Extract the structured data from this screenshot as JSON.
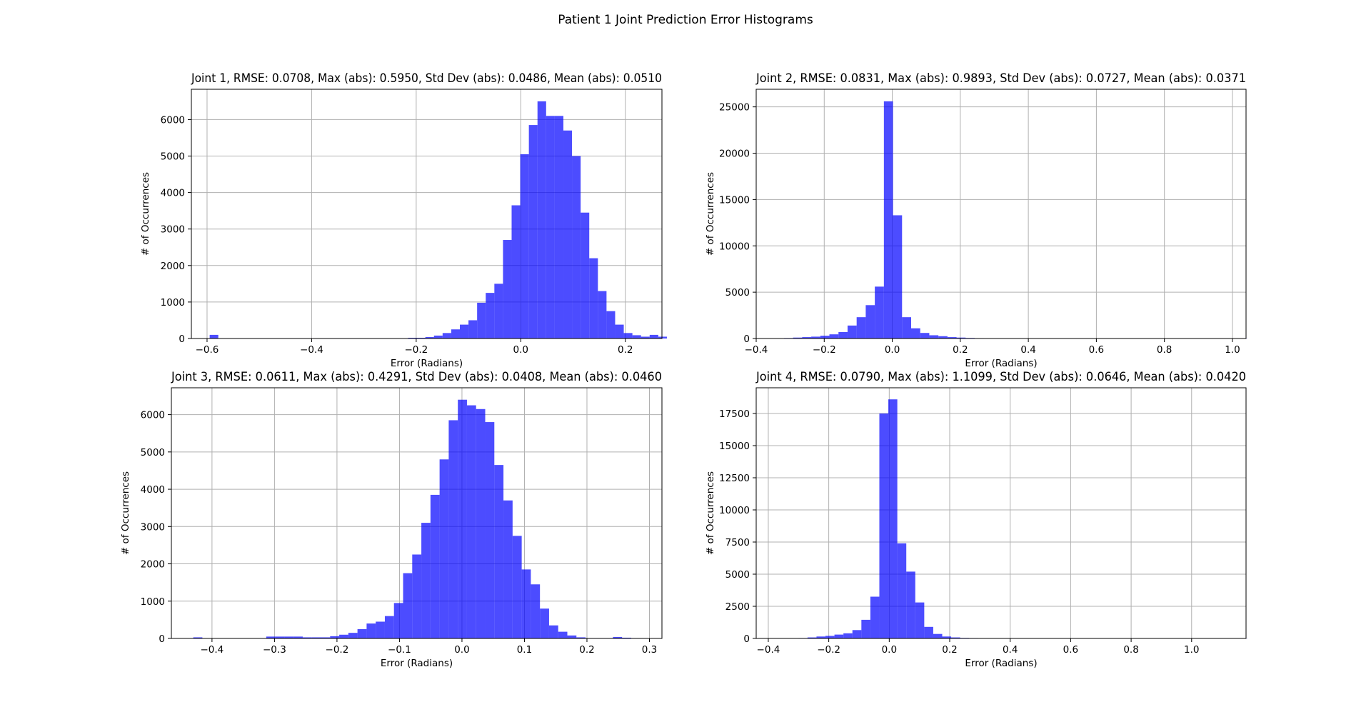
{
  "figure": {
    "title": "Patient 1 Joint Prediction Error Histograms"
  },
  "style": {
    "bar_color": "#0000ff",
    "bar_opacity": 0.7,
    "grid_color": "#b0b0b0"
  },
  "chart_data": [
    {
      "type": "bar",
      "title": "Joint 1, RMSE: 0.0708, Max (abs): 0.5950, Std Dev (abs): 0.0486, Mean (abs): 0.0510",
      "xlabel": "Error (Radians)",
      "ylabel": "# of Occurrences",
      "grid": true,
      "xlim": [
        -0.63,
        0.27
      ],
      "ylim": [
        0,
        6830
      ],
      "xticks": [
        -0.6,
        -0.4,
        -0.2,
        0.0,
        0.2
      ],
      "xtick_labels": [
        "−0.6",
        "−0.4",
        "−0.2",
        "0.0",
        "0.2"
      ],
      "yticks": [
        0,
        1000,
        2000,
        3000,
        4000,
        5000,
        6000
      ],
      "ytick_labels": [
        "0",
        "1000",
        "2000",
        "3000",
        "4000",
        "5000",
        "6000"
      ],
      "bin_start": -0.595,
      "bin_width": 0.0165,
      "values": [
        100,
        10,
        10,
        10,
        10,
        10,
        10,
        10,
        10,
        10,
        10,
        10,
        10,
        10,
        10,
        10,
        10,
        10,
        10,
        10,
        10,
        10,
        10,
        20,
        20,
        40,
        80,
        150,
        250,
        380,
        500,
        980,
        1250,
        1500,
        2700,
        3650,
        5050,
        5850,
        6500,
        6100,
        6100,
        5700,
        5000,
        3450,
        2200,
        1300,
        750,
        380,
        150,
        90,
        50,
        100,
        50
      ]
    },
    {
      "type": "bar",
      "title": "Joint 2, RMSE: 0.0831, Max (abs): 0.9893, Std Dev (abs): 0.0727, Mean (abs): 0.0371",
      "xlabel": "Error (Radians)",
      "ylabel": "# of Occurrences",
      "grid": true,
      "xlim": [
        -0.4,
        1.04
      ],
      "ylim": [
        0,
        26900
      ],
      "xticks": [
        -0.4,
        -0.2,
        0.0,
        0.2,
        0.4,
        0.6,
        0.8,
        1.0
      ],
      "xtick_labels": [
        "−0.4",
        "−0.2",
        "0.0",
        "0.2",
        "0.4",
        "0.6",
        "0.8",
        "1.0"
      ],
      "yticks": [
        0,
        5000,
        10000,
        15000,
        20000,
        25000
      ],
      "ytick_labels": [
        "0",
        "5000",
        "10000",
        "15000",
        "20000",
        "25000"
      ],
      "bin_start": -0.345,
      "bin_width": 0.0267,
      "values": [
        20,
        50,
        100,
        150,
        200,
        300,
        450,
        700,
        1400,
        2300,
        3600,
        5600,
        25600,
        13300,
        2300,
        1100,
        600,
        350,
        250,
        150,
        100,
        60,
        40,
        30,
        30,
        20,
        20,
        20,
        20,
        20,
        20,
        20,
        20,
        20,
        20,
        20,
        20,
        20,
        20,
        20,
        20,
        20,
        20,
        20,
        20,
        20,
        20,
        20,
        20,
        20,
        30,
        30
      ]
    },
    {
      "type": "bar",
      "title": "Joint 3, RMSE: 0.0611, Max (abs): 0.4291, Std Dev (abs): 0.0408, Mean (abs): 0.0460",
      "xlabel": "Error (Radians)",
      "ylabel": "# of Occurrences",
      "grid": true,
      "xlim": [
        -0.465,
        0.32
      ],
      "ylim": [
        0,
        6720
      ],
      "xticks": [
        -0.4,
        -0.3,
        -0.2,
        -0.1,
        0.0,
        0.1,
        0.2,
        0.3
      ],
      "xtick_labels": [
        "−0.4",
        "−0.3",
        "−0.2",
        "−0.1",
        "0.0",
        "0.1",
        "0.2",
        "0.3"
      ],
      "yticks": [
        0,
        1000,
        2000,
        3000,
        4000,
        5000,
        6000
      ],
      "ytick_labels": [
        "0",
        "1000",
        "2000",
        "3000",
        "4000",
        "5000",
        "6000"
      ],
      "bin_start": -0.43,
      "bin_width": 0.0146,
      "values": [
        30,
        0,
        0,
        0,
        0,
        0,
        0,
        0,
        50,
        50,
        50,
        50,
        30,
        30,
        30,
        60,
        100,
        150,
        250,
        400,
        450,
        600,
        950,
        1750,
        2250,
        3100,
        3850,
        4800,
        5850,
        6400,
        6250,
        6150,
        5800,
        4650,
        3700,
        2750,
        1850,
        1450,
        800,
        350,
        180,
        80,
        30,
        10,
        10,
        10,
        40,
        20,
        10,
        0
      ]
    },
    {
      "type": "bar",
      "title": "Joint 4, RMSE: 0.0790, Max (abs): 1.1099, Std Dev (abs): 0.0646, Mean (abs): 0.0420",
      "xlabel": "Error (Radians)",
      "ylabel": "# of Occurrences",
      "grid": true,
      "xlim": [
        -0.44,
        1.18
      ],
      "ylim": [
        0,
        19500
      ],
      "xticks": [
        -0.4,
        -0.2,
        0.0,
        0.2,
        0.4,
        0.6,
        0.8,
        1.0
      ],
      "xtick_labels": [
        "−0.4",
        "−0.2",
        "0.0",
        "0.2",
        "0.4",
        "0.6",
        "0.8",
        "1.0"
      ],
      "yticks": [
        0,
        2500,
        5000,
        7500,
        10000,
        12500,
        15000,
        17500
      ],
      "ytick_labels": [
        "0",
        "2500",
        "5000",
        "7500",
        "10000",
        "12500",
        "15000",
        "17500"
      ],
      "bin_start": -0.3,
      "bin_width": 0.0297,
      "values": [
        30,
        80,
        150,
        200,
        300,
        400,
        650,
        1450,
        3250,
        17500,
        18600,
        7400,
        5200,
        2800,
        900,
        350,
        150,
        80,
        40,
        30,
        20,
        20,
        10,
        10,
        10,
        10,
        10,
        10,
        10,
        10,
        10,
        10,
        10,
        10,
        10,
        10,
        10,
        10,
        10,
        10,
        10,
        10,
        10,
        10,
        10,
        10,
        10,
        20,
        20,
        20
      ]
    }
  ]
}
